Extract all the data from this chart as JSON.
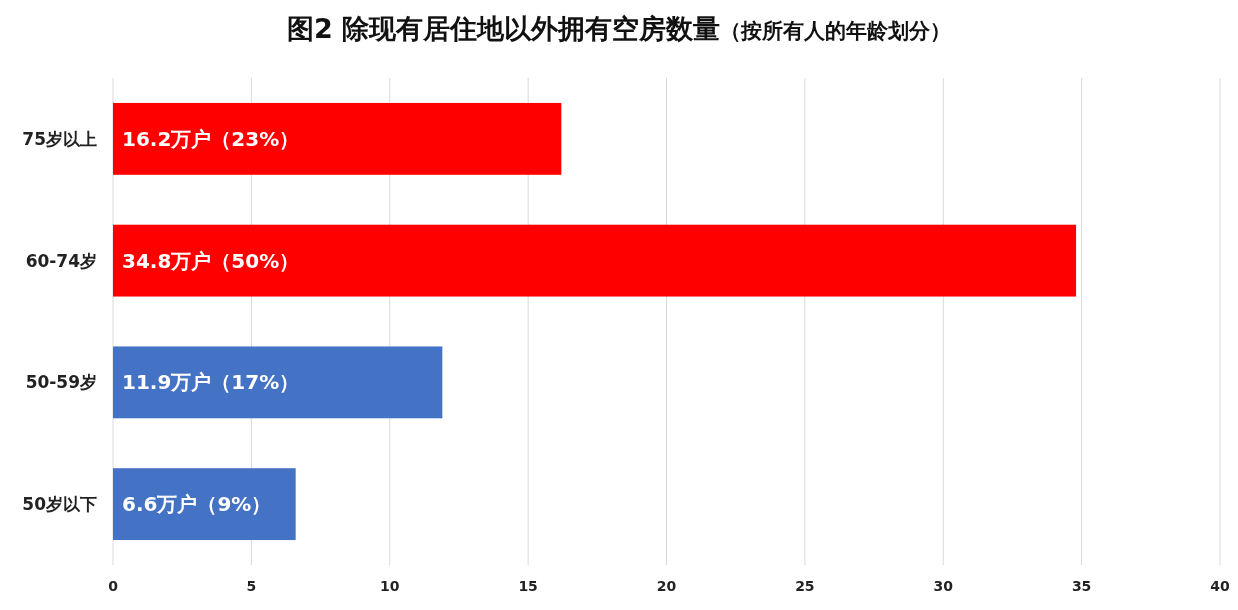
{
  "chart_data": {
    "type": "bar",
    "orientation": "horizontal",
    "title": "图2 除现有居住地以外拥有空房数量",
    "subtitle": "（按所有人的年龄划分）",
    "categories": [
      "75岁以上",
      "60-74岁",
      "50-59岁",
      "50岁以下"
    ],
    "values": [
      16.2,
      34.8,
      11.9,
      6.6
    ],
    "colors": [
      "#ff0000",
      "#ff0000",
      "#4472c4",
      "#4472c4"
    ],
    "value_labels": [
      "16.2万户（23%）",
      "34.8万户（50%）",
      "11.9万户（17%）",
      "6.6万户（9%）"
    ],
    "xlim": [
      0,
      40
    ],
    "xticks": [
      0,
      5,
      10,
      15,
      20,
      25,
      30,
      35,
      40
    ],
    "grid": "x"
  }
}
